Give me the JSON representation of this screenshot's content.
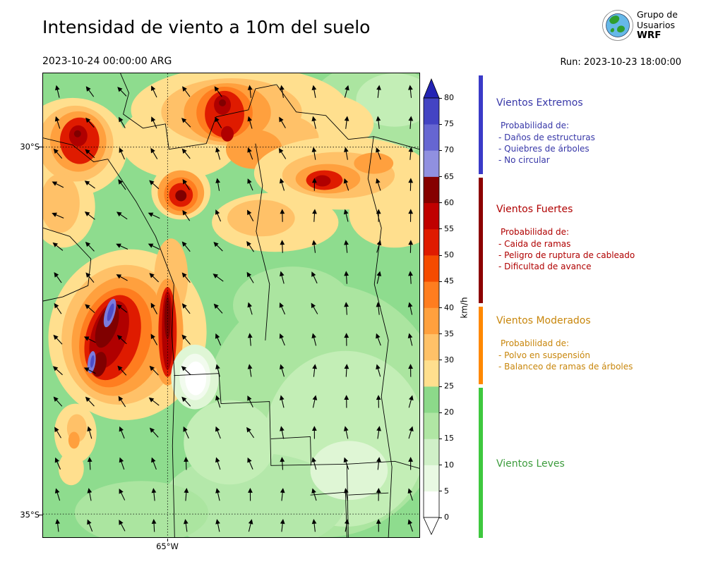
{
  "header": {
    "title": "Intensidad de viento a 10m del suelo",
    "valid_datetime": "2023-10-24 00:00:00 ARG",
    "run_label": "Run: 2023-10-23 18:00:00",
    "logo": {
      "line1": "Grupo de",
      "line2": "Usuarios",
      "line3": "WRF"
    }
  },
  "map": {
    "lat_ticks": [
      "30°S",
      "35°S"
    ],
    "lon_ticks": [
      "65°W"
    ]
  },
  "colorbar": {
    "unit": "km/h",
    "ticks": [
      0,
      5,
      10,
      15,
      20,
      25,
      30,
      35,
      40,
      45,
      50,
      55,
      60,
      65,
      70,
      75,
      80
    ],
    "band_colors": [
      "#ffffff",
      "#e9f9e3",
      "#d0f0c8",
      "#b0e6a4",
      "#8cd98a",
      "#ffdf8e",
      "#ffc168",
      "#ffa03e",
      "#ff7d1f",
      "#f54b00",
      "#df1b00",
      "#c00000",
      "#850000",
      "#9090e0",
      "#6666d2",
      "#4343c3"
    ],
    "over_color": "#2323b4",
    "under_color": "#ffffff"
  },
  "legend": {
    "sections": [
      {
        "title": "Vientos Extremos",
        "color": "#3737a8",
        "bar_color": "#3a3ac8",
        "prob_label": "Probabilidad de:",
        "items": [
          "- Daños de estructuras",
          "- Quiebres de árboles",
          "- No circular"
        ]
      },
      {
        "title": "Vientos Fuertes",
        "color": "#b00000",
        "bar_color": "#8c0000",
        "prob_label": "Probabilidad de:",
        "items": [
          "- Caida de ramas",
          "- Peligro de ruptura de cableado",
          "- Dificultad de avance"
        ]
      },
      {
        "title": "Vientos Moderados",
        "color": "#c8860b",
        "bar_color": "#ff8800",
        "prob_label": "Probabilidad de:",
        "items": [
          "- Polvo en suspensión",
          "- Balanceo de ramas de árboles"
        ]
      },
      {
        "title": "Vientos Leves",
        "color": "#3d9c3d",
        "bar_color": "#3ec83e",
        "prob_label": "",
        "items": []
      }
    ]
  },
  "chart_data": {
    "type": "heatmap",
    "title": "Intensidad de viento a 10m del suelo",
    "valid_time": "2023-10-24 00:00:00 ARG",
    "model_run": "2023-10-23 18:00:00",
    "unit": "km/h",
    "colorbar_ticks": [
      0,
      5,
      10,
      15,
      20,
      25,
      30,
      35,
      40,
      45,
      50,
      55,
      60,
      65,
      70,
      75,
      80
    ],
    "colorbar_extend": "both",
    "lat_ticks": [
      "30°S",
      "35°S"
    ],
    "lon_ticks": [
      "65°W"
    ],
    "overlay": "wind direction arrows",
    "wind_categories": [
      {
        "name": "Vientos Leves",
        "range_kmh": [
          0,
          25
        ]
      },
      {
        "name": "Vientos Moderados",
        "range_kmh": [
          25,
          40
        ]
      },
      {
        "name": "Vientos Fuertes",
        "range_kmh": [
          40,
          65
        ]
      },
      {
        "name": "Vientos Extremos",
        "range_kmh": [
          65,
          85
        ]
      }
    ]
  }
}
